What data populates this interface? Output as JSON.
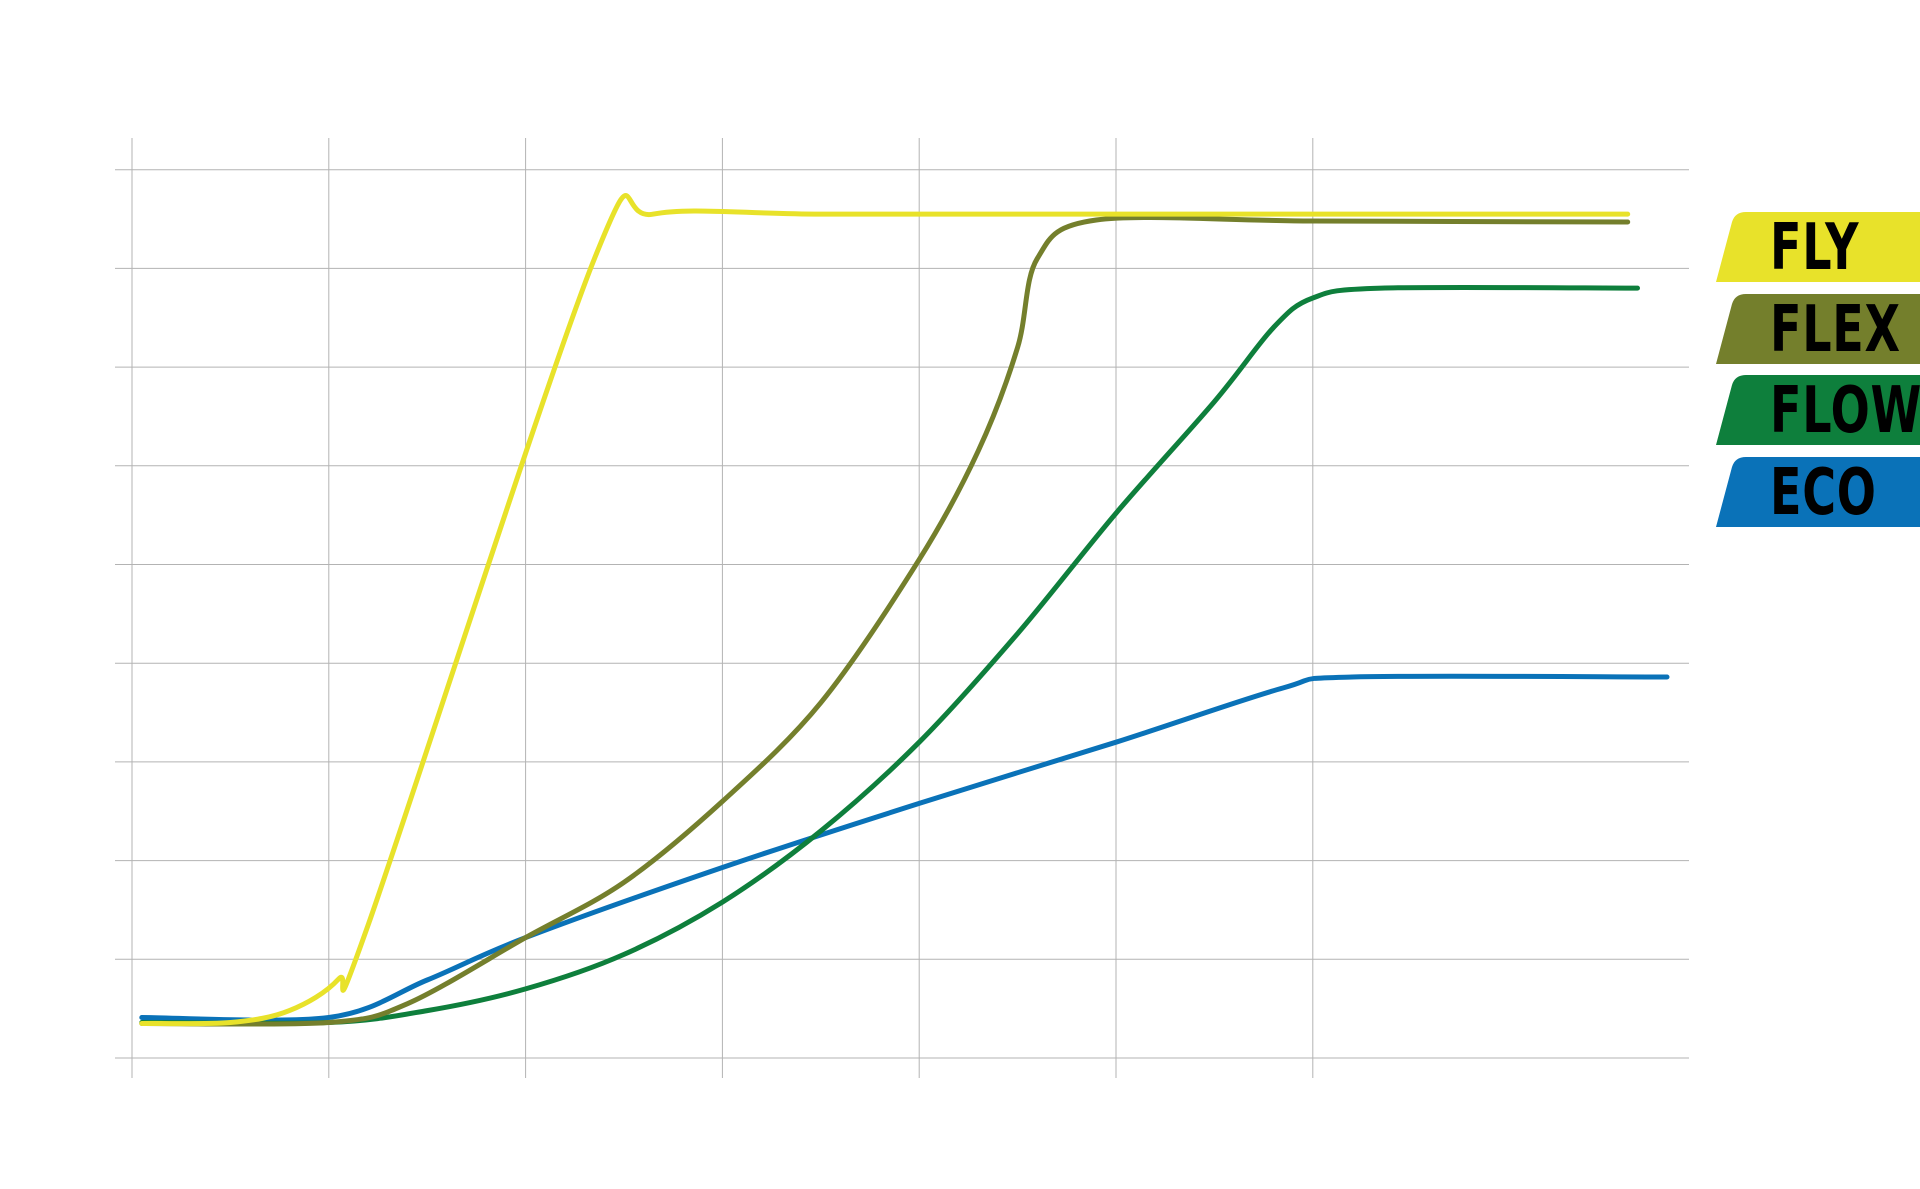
{
  "chart_data": {
    "type": "line",
    "title": "",
    "xlabel": "",
    "ylabel": "",
    "xlim": [
      0,
      7.9
    ],
    "ylim": [
      0,
      9
    ],
    "x_gridlines": [
      0,
      1,
      2,
      3,
      4,
      5,
      6
    ],
    "y_gridlines": [
      0,
      1,
      2,
      3,
      4,
      5,
      6,
      7,
      8,
      9
    ],
    "grid": true,
    "legend_position": "right",
    "series": [
      {
        "name": "FLY",
        "color": "#E8E22A",
        "points": [
          [
            0.05,
            0.35
          ],
          [
            0.5,
            0.36
          ],
          [
            0.8,
            0.48
          ],
          [
            1.05,
            0.8
          ],
          [
            1.2,
            1.35
          ],
          [
            2.35,
            8.1
          ],
          [
            2.65,
            8.55
          ],
          [
            3.5,
            8.55
          ],
          [
            5.0,
            8.55
          ],
          [
            7.6,
            8.55
          ]
        ]
      },
      {
        "name": "FLEX",
        "color": "#747F2C",
        "points": [
          [
            0.05,
            0.35
          ],
          [
            1.0,
            0.36
          ],
          [
            1.4,
            0.55
          ],
          [
            2.0,
            1.22
          ],
          [
            2.5,
            1.78
          ],
          [
            3.0,
            2.6
          ],
          [
            3.5,
            3.6
          ],
          [
            4.0,
            5.05
          ],
          [
            4.3,
            6.15
          ],
          [
            4.5,
            7.2
          ],
          [
            4.6,
            8.1
          ],
          [
            4.9,
            8.49
          ],
          [
            6.0,
            8.48
          ],
          [
            7.6,
            8.47
          ]
        ]
      },
      {
        "name": "FLOW",
        "color": "#0E7F3C",
        "points": [
          [
            0.05,
            0.36
          ],
          [
            1.0,
            0.36
          ],
          [
            1.5,
            0.48
          ],
          [
            2.0,
            0.7
          ],
          [
            2.5,
            1.05
          ],
          [
            3.0,
            1.58
          ],
          [
            3.5,
            2.3
          ],
          [
            4.0,
            3.2
          ],
          [
            4.5,
            4.3
          ],
          [
            5.0,
            5.52
          ],
          [
            5.5,
            6.65
          ],
          [
            5.8,
            7.4
          ],
          [
            6.0,
            7.7
          ],
          [
            6.35,
            7.8
          ],
          [
            7.65,
            7.8
          ]
        ]
      },
      {
        "name": "ECO",
        "color": "#0A72B8",
        "points": [
          [
            0.05,
            0.41
          ],
          [
            1.0,
            0.41
          ],
          [
            1.5,
            0.79
          ],
          [
            2.0,
            1.22
          ],
          [
            3.0,
            1.93
          ],
          [
            4.0,
            2.58
          ],
          [
            5.0,
            3.2
          ],
          [
            5.85,
            3.75
          ],
          [
            6.2,
            3.86
          ],
          [
            7.8,
            3.86
          ]
        ]
      }
    ]
  },
  "legend": [
    {
      "label": "FLY",
      "color": "#E8E22A"
    },
    {
      "label": "FLEX",
      "color": "#747F2C"
    },
    {
      "label": "FLOW",
      "color": "#0E7F3C"
    },
    {
      "label": "ECO",
      "color": "#0A72B8"
    }
  ]
}
